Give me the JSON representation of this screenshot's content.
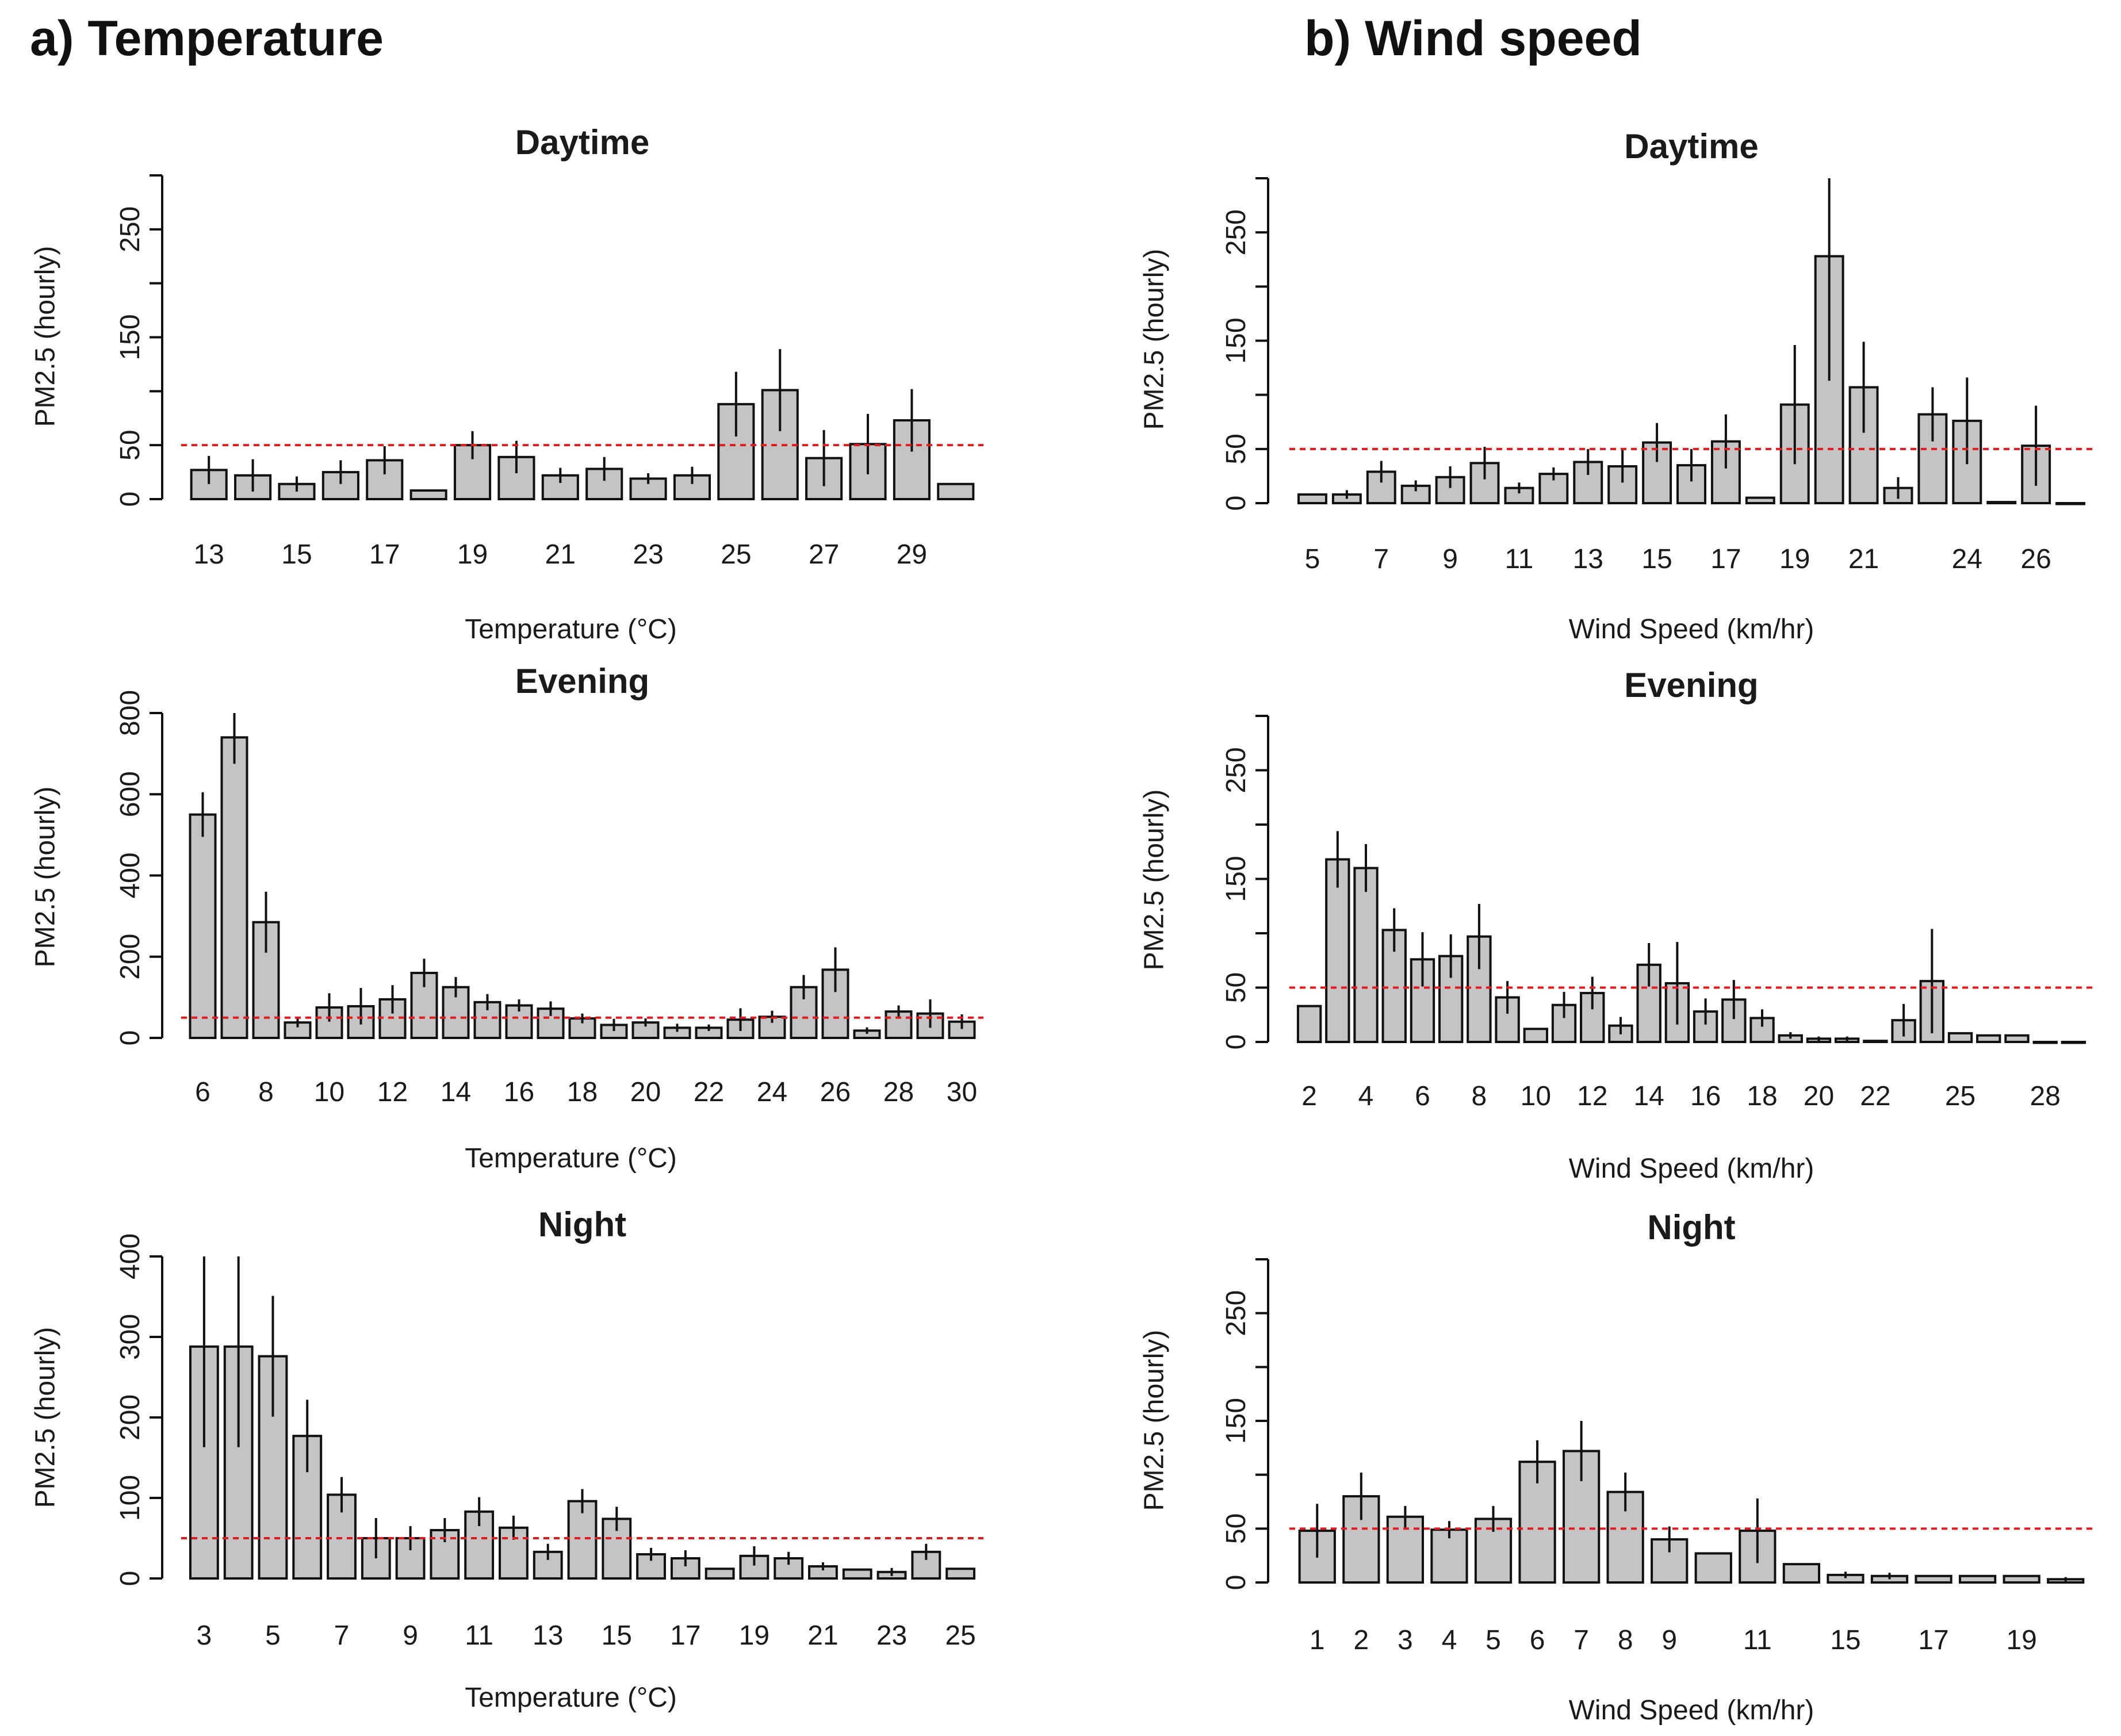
{
  "panels": {
    "a_title": "a) Temperature",
    "b_title": "b) Wind speed"
  },
  "colors": {
    "bar_fill": "#c4c4c4",
    "bar_stroke": "#111111",
    "reference_line": "#e8191a"
  },
  "chart_data": [
    {
      "id": "temp_day",
      "panel": "a",
      "type": "bar",
      "title": "Daytime",
      "xlabel": "Temperature (°C)",
      "ylabel": "PM2.5 (hourly)",
      "ylim": [
        0,
        300
      ],
      "yticks": [
        0,
        50,
        150,
        250
      ],
      "reference_line": 50,
      "categories": [
        "13",
        "14",
        "15",
        "16",
        "17",
        "18",
        "19",
        "20",
        "21",
        "22",
        "23",
        "24",
        "25",
        "26",
        "27",
        "28",
        "29",
        "30"
      ],
      "values": [
        27,
        22,
        14,
        25,
        36,
        8,
        50,
        39,
        22,
        28,
        19,
        22,
        88,
        101,
        38,
        51,
        73,
        14
      ],
      "errors": [
        13,
        15,
        7,
        11,
        13,
        0,
        13,
        15,
        7,
        11,
        5,
        8,
        30,
        38,
        26,
        28,
        29,
        0
      ],
      "xtick_labels": [
        "13",
        "15",
        "17",
        "19",
        "21",
        "23",
        "25",
        "27",
        "29"
      ]
    },
    {
      "id": "temp_evening",
      "panel": "a",
      "type": "bar",
      "title": "Evening",
      "xlabel": "Temperature (°C)",
      "ylabel": "PM2.5 (hourly)",
      "ylim": [
        0,
        800
      ],
      "yticks": [
        0,
        200,
        400,
        600,
        800
      ],
      "reference_line": 50,
      "categories": [
        "6",
        "7",
        "8",
        "9",
        "10",
        "11",
        "12",
        "13",
        "14",
        "15",
        "16",
        "17",
        "18",
        "19",
        "20",
        "21",
        "22",
        "23",
        "24",
        "25",
        "26",
        "27",
        "28",
        "29",
        "30"
      ],
      "values": [
        550,
        740,
        285,
        38,
        75,
        78,
        95,
        160,
        125,
        88,
        80,
        72,
        48,
        32,
        38,
        25,
        25,
        45,
        52,
        125,
        168,
        18,
        65,
        60,
        40
      ],
      "errors": [
        55,
        65,
        75,
        12,
        35,
        45,
        35,
        35,
        25,
        20,
        15,
        18,
        12,
        15,
        10,
        10,
        8,
        28,
        15,
        30,
        55,
        8,
        15,
        35,
        18
      ],
      "xtick_labels": [
        "6",
        "8",
        "10",
        "12",
        "14",
        "16",
        "18",
        "20",
        "22",
        "24",
        "26",
        "28",
        "30"
      ]
    },
    {
      "id": "temp_night",
      "panel": "a",
      "type": "bar",
      "title": "Night",
      "xlabel": "Temperature (°C)",
      "ylabel": "PM2.5 (hourly)",
      "ylim": [
        0,
        400
      ],
      "yticks": [
        0,
        100,
        200,
        300,
        400
      ],
      "reference_line": 50,
      "categories": [
        "3",
        "4",
        "5",
        "6",
        "7",
        "8",
        "9",
        "10",
        "11",
        "12",
        "13",
        "14",
        "15",
        "16",
        "17",
        "18",
        "19",
        "20",
        "21",
        "22",
        "23",
        "24",
        "25"
      ],
      "values": [
        288,
        288,
        276,
        177,
        104,
        50,
        50,
        60,
        83,
        63,
        33,
        96,
        74,
        30,
        25,
        12,
        28,
        25,
        15,
        11,
        8,
        33,
        12
      ],
      "errors": [
        125,
        125,
        75,
        45,
        22,
        25,
        15,
        15,
        18,
        15,
        10,
        15,
        15,
        8,
        10,
        0,
        12,
        8,
        5,
        0,
        5,
        10,
        0
      ],
      "xtick_labels": [
        "3",
        "5",
        "7",
        "9",
        "11",
        "13",
        "15",
        "17",
        "19",
        "21",
        "23",
        "25"
      ]
    },
    {
      "id": "wind_day",
      "panel": "b",
      "type": "bar",
      "title": "Daytime",
      "xlabel": "Wind Speed (km/hr)",
      "ylabel": "PM2.5 (hourly)",
      "ylim": [
        0,
        300
      ],
      "yticks": [
        0,
        50,
        150,
        250
      ],
      "reference_line": 50,
      "categories": [
        "5",
        "6",
        "7",
        "8",
        "9",
        "10",
        "11",
        "12",
        "13",
        "14",
        "15",
        "16",
        "17",
        "18",
        "19",
        "20",
        "21",
        "22",
        "23",
        "24",
        "25",
        "26",
        "27"
      ],
      "values": [
        8,
        8,
        29,
        16,
        24,
        37,
        14,
        27,
        38,
        34,
        56,
        35,
        57,
        5,
        91,
        228,
        107,
        14,
        82,
        76,
        1,
        53,
        0
      ],
      "errors": [
        0,
        4,
        10,
        5,
        10,
        15,
        5,
        6,
        12,
        15,
        18,
        15,
        25,
        0,
        55,
        115,
        42,
        10,
        25,
        40,
        0,
        37,
        0
      ],
      "xtick_labels": [
        "5",
        "7",
        "9",
        "11",
        "13",
        "15",
        "17",
        "19",
        "21",
        "24",
        "26"
      ]
    },
    {
      "id": "wind_evening",
      "panel": "b",
      "type": "bar",
      "title": "Evening",
      "xlabel": "Wind Speed (km/hr)",
      "ylabel": "PM2.5 (hourly)",
      "ylim": [
        0,
        300
      ],
      "yticks": [
        0,
        50,
        150,
        250
      ],
      "reference_line": 50,
      "categories": [
        "2",
        "3",
        "4",
        "5",
        "6",
        "7",
        "8",
        "9",
        "10",
        "11",
        "12",
        "13",
        "14",
        "15",
        "16",
        "17",
        "18",
        "19",
        "20",
        "21",
        "22",
        "23",
        "24",
        "25",
        "26",
        "27",
        "28",
        "29"
      ],
      "values": [
        33,
        168,
        160,
        103,
        76,
        79,
        97,
        41,
        12,
        34,
        45,
        15,
        71,
        54,
        28,
        39,
        22,
        6,
        3,
        3,
        1,
        20,
        56,
        8,
        6,
        6,
        0,
        0
      ],
      "errors": [
        0,
        26,
        22,
        20,
        25,
        20,
        30,
        15,
        0,
        12,
        15,
        8,
        20,
        38,
        12,
        18,
        8,
        3,
        2,
        2,
        0,
        15,
        48,
        0,
        0,
        0,
        0,
        0
      ],
      "xtick_labels": [
        "2",
        "4",
        "6",
        "8",
        "10",
        "12",
        "14",
        "16",
        "18",
        "20",
        "22",
        "25",
        "28"
      ]
    },
    {
      "id": "wind_night",
      "panel": "b",
      "type": "bar",
      "title": "Night",
      "xlabel": "Wind Speed (km/hr)",
      "ylabel": "PM2.5 (hourly)",
      "ylim": [
        0,
        300
      ],
      "yticks": [
        0,
        50,
        150,
        250
      ],
      "reference_line": 50,
      "categories": [
        "1",
        "2",
        "3",
        "4",
        "5",
        "6",
        "7",
        "8",
        "9",
        "10",
        "11",
        "13",
        "15",
        "16",
        "17",
        "18",
        "19",
        "20"
      ],
      "values": [
        48,
        80,
        61,
        49,
        59,
        112,
        122,
        84,
        40,
        27,
        48,
        17,
        7,
        6,
        6,
        6,
        6,
        3
      ],
      "errors": [
        25,
        22,
        10,
        8,
        12,
        20,
        28,
        18,
        12,
        0,
        30,
        0,
        3,
        3,
        0,
        0,
        0,
        2
      ],
      "xtick_labels": [
        "1",
        "2",
        "3",
        "4",
        "5",
        "6",
        "7",
        "8",
        "9",
        "11",
        "15",
        "17",
        "19"
      ]
    }
  ]
}
